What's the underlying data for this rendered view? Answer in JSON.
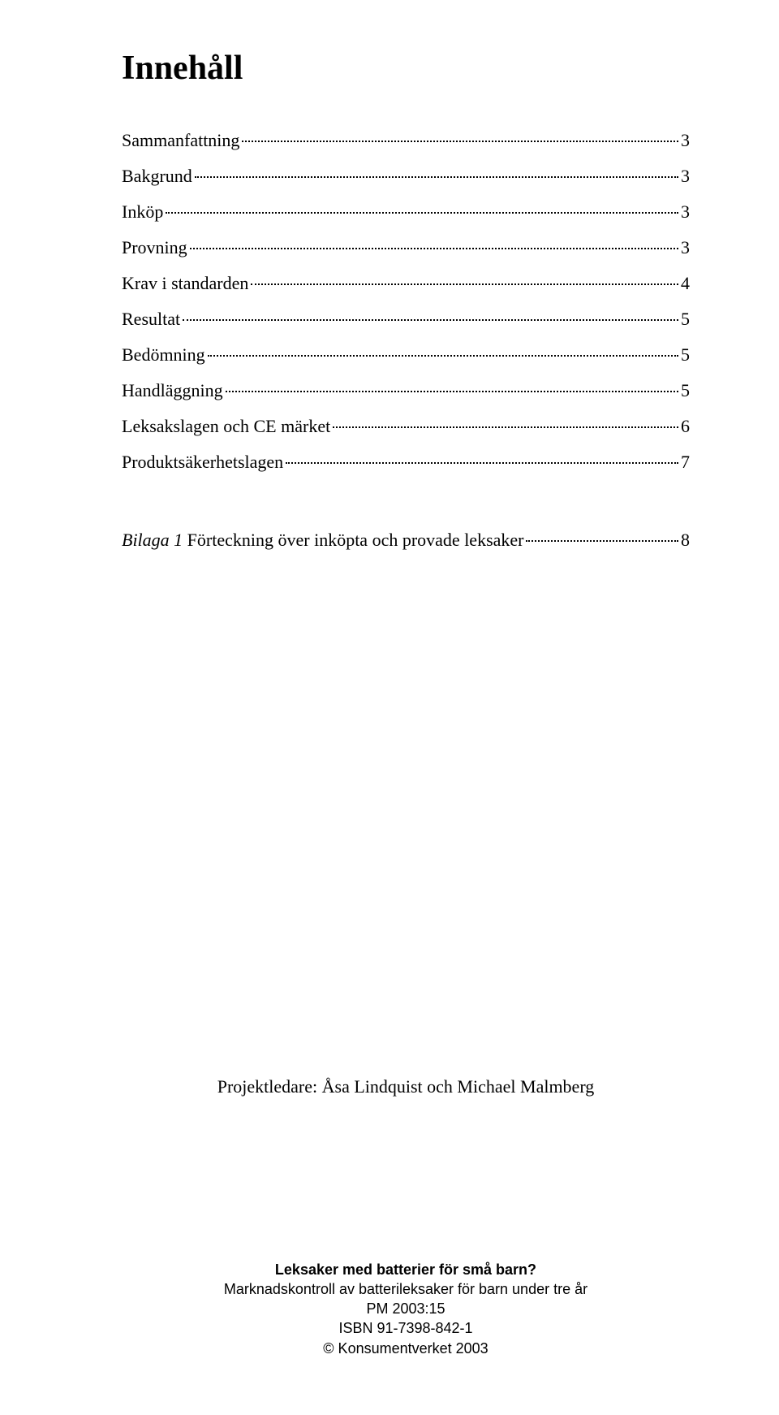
{
  "title": "Innehåll",
  "toc": [
    {
      "label": "Sammanfattning",
      "page": "3"
    },
    {
      "label": "Bakgrund",
      "page": "3"
    },
    {
      "label": "Inköp",
      "page": "3"
    },
    {
      "label": "Provning",
      "page": "3"
    },
    {
      "label": "Krav i standarden",
      "page": "4"
    },
    {
      "label": "Resultat",
      "page": "5"
    },
    {
      "label": "Bedömning",
      "page": "5"
    },
    {
      "label": "Handläggning",
      "page": "5"
    },
    {
      "label": "Leksakslagen och CE märket",
      "page": "6"
    },
    {
      "label": "Produktsäkerhetslagen",
      "page": "7"
    }
  ],
  "appendix": {
    "prefix": "Bilaga 1",
    "rest": "  Förteckning över inköpta och provade leksaker",
    "page": "8"
  },
  "credits": "Projektledare: Åsa Lindquist och Michael Malmberg",
  "footer": {
    "line1": "Leksaker med batterier för små barn?",
    "line2": "Marknadskontroll av batterileksaker för barn under tre år",
    "line3": "PM 2003:15",
    "line4": "ISBN 91-7398-842-1",
    "line5": "© Konsumentverket 2003"
  }
}
